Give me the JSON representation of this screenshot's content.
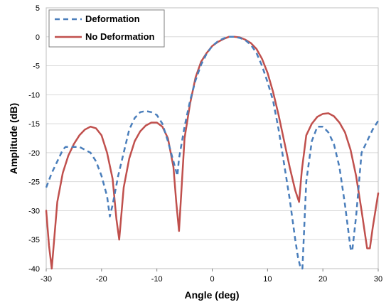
{
  "chart_data": {
    "type": "line",
    "title": "",
    "xlabel": "Angle (deg)",
    "ylabel": "Amplitude (dB)",
    "xlim": [
      -30,
      30
    ],
    "ylim": [
      -40,
      5
    ],
    "xticks": [
      -30,
      -20,
      -10,
      0,
      10,
      20,
      30
    ],
    "yticks": [
      5,
      0,
      -5,
      -10,
      -15,
      -20,
      -25,
      -30,
      -35,
      -40
    ],
    "grid": true,
    "legend_position": "top-left",
    "series": [
      {
        "name": "Deformation",
        "color": "#4a7ebb",
        "style": "dashed",
        "x": [
          -30,
          -29,
          -28,
          -27,
          -26.5,
          -26,
          -25,
          -24,
          -23,
          -22,
          -21,
          -20,
          -19,
          -18.5,
          -18,
          -17,
          -16,
          -15,
          -14,
          -13,
          -12,
          -11,
          -10,
          -9,
          -8,
          -7,
          -6.3,
          -6,
          -5,
          -4,
          -3,
          -2,
          -1,
          0,
          1,
          2,
          3,
          4,
          5,
          6,
          7,
          8,
          9,
          10,
          11,
          12,
          13,
          14,
          15,
          15.5,
          16,
          16.3,
          17,
          18,
          19,
          20,
          21,
          22,
          23,
          24,
          25,
          25.3,
          26,
          27,
          28,
          29,
          30
        ],
        "y": [
          -26,
          -23.5,
          -21.5,
          -19.5,
          -19,
          -19,
          -19,
          -19,
          -19.5,
          -20,
          -21.5,
          -24,
          -27.5,
          -31,
          -29,
          -24,
          -20,
          -16,
          -14,
          -13,
          -12.8,
          -13,
          -13.5,
          -15,
          -18,
          -21.5,
          -24,
          -21,
          -15.5,
          -11,
          -7.5,
          -4.8,
          -2.9,
          -1.6,
          -0.8,
          -0.3,
          0,
          0,
          -0.2,
          -0.6,
          -1.4,
          -2.8,
          -5,
          -7.8,
          -11,
          -16,
          -22,
          -28,
          -35,
          -38,
          -40,
          -40,
          -25,
          -18,
          -15.5,
          -15.5,
          -16.5,
          -18.5,
          -22.5,
          -29,
          -36.5,
          -37,
          -31,
          -20,
          -18,
          -16,
          -14.5
        ]
      },
      {
        "name": "No Deformation",
        "color": "#c0504d",
        "style": "solid",
        "x": [
          -30,
          -29.5,
          -29,
          -28,
          -27,
          -26,
          -25,
          -24,
          -23,
          -22,
          -21,
          -20,
          -19,
          -18,
          -17.3,
          -16.8,
          -16,
          -15,
          -14,
          -13,
          -12,
          -11,
          -10,
          -9,
          -8,
          -7,
          -6.5,
          -6,
          -5,
          -4,
          -3,
          -2,
          -1,
          0,
          1,
          2,
          3,
          4,
          5,
          6,
          7,
          8,
          9,
          10,
          11,
          12,
          13,
          14,
          15,
          15.7,
          16.2,
          17,
          18,
          19,
          20,
          21,
          22,
          23,
          24,
          25,
          26,
          27,
          28,
          28.5,
          29,
          30
        ],
        "y": [
          -30,
          -36,
          -40,
          -28.5,
          -23.5,
          -20.5,
          -18.5,
          -17,
          -16,
          -15.5,
          -15.8,
          -17,
          -20,
          -24.5,
          -31.5,
          -35,
          -26,
          -21,
          -18,
          -16.3,
          -15.3,
          -14.8,
          -14.8,
          -15.5,
          -17.5,
          -22.5,
          -28.5,
          -33.5,
          -17.5,
          -11.5,
          -7,
          -4.3,
          -2.8,
          -1.6,
          -0.9,
          -0.4,
          0,
          0,
          -0.1,
          -0.5,
          -1.1,
          -2.1,
          -3.8,
          -6.2,
          -9.5,
          -13.5,
          -18,
          -22.5,
          -26.5,
          -28.5,
          -23,
          -17,
          -15,
          -13.8,
          -13.3,
          -13.2,
          -13.7,
          -14.8,
          -16.5,
          -19.5,
          -24,
          -30,
          -36.5,
          -36.5,
          -33,
          -27
        ]
      }
    ]
  }
}
